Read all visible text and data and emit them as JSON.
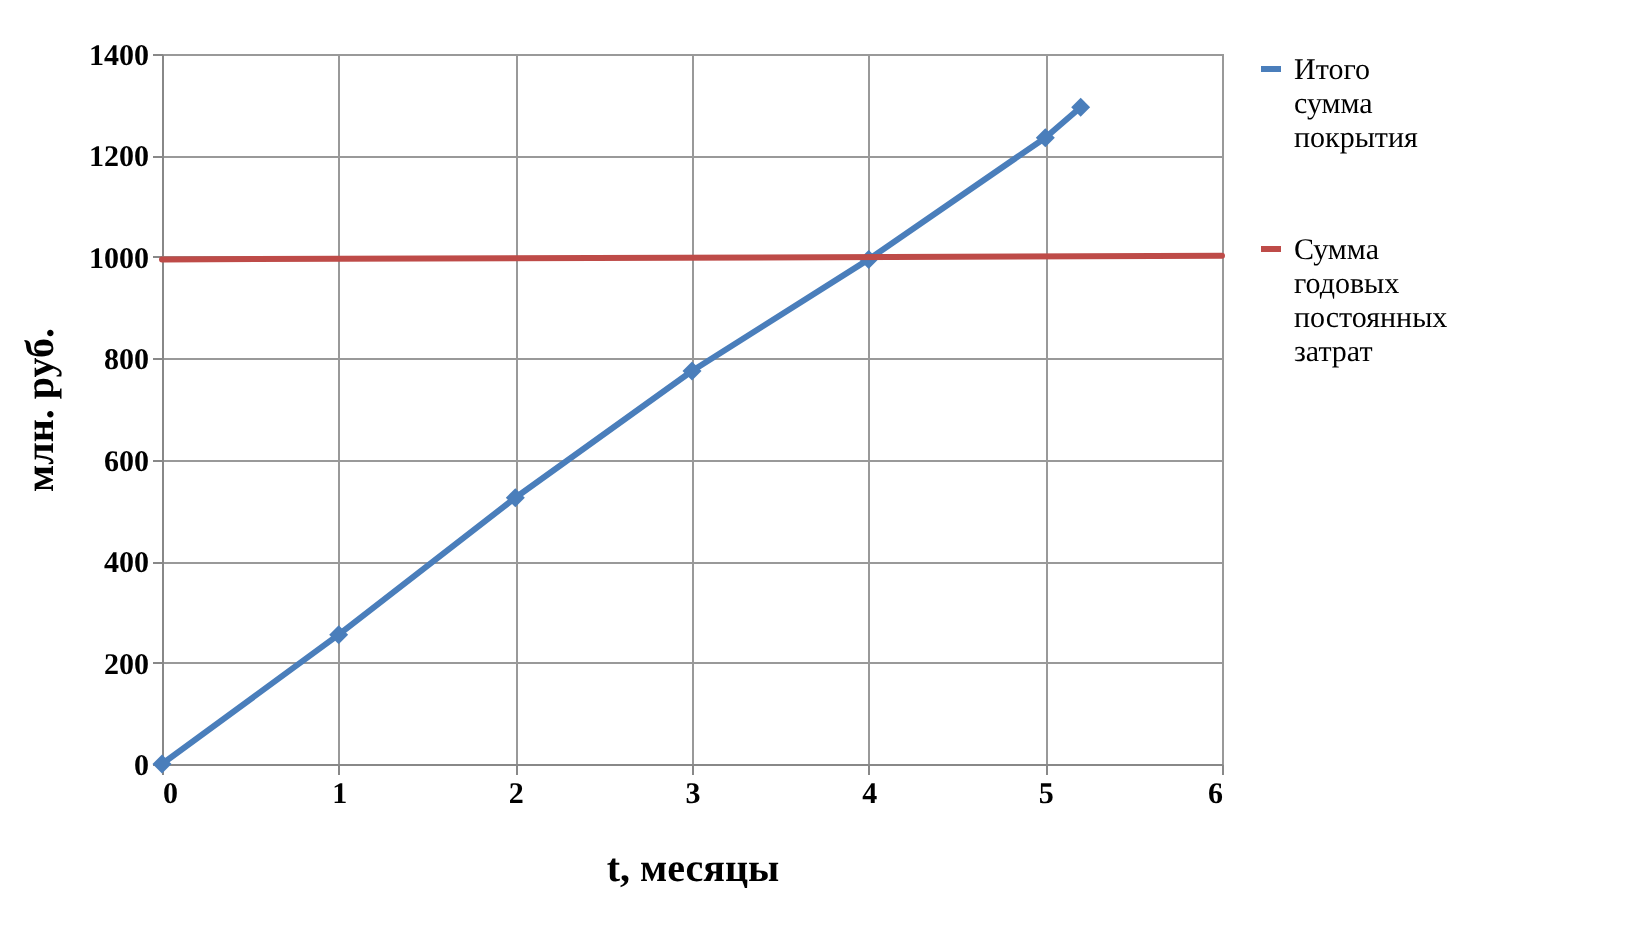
{
  "chart_data": {
    "type": "line",
    "xlabel": "t, месяцы",
    "ylabel": "млн. руб.",
    "xlim": [
      0,
      6
    ],
    "xticks": [
      0,
      1,
      2,
      3,
      4,
      5,
      6
    ],
    "ylim": [
      0,
      1400
    ],
    "yticks": [
      0,
      200,
      400,
      600,
      800,
      1000,
      1200,
      1400
    ],
    "grid": true,
    "legend": "right",
    "marker": "diamond",
    "line_style": "solid",
    "series": [
      {
        "name": "Итого сумма покрытия",
        "color": "#4a7ebb",
        "x": [
          0,
          1,
          2,
          3,
          4,
          5,
          5.2
        ],
        "values": [
          0,
          255,
          525,
          775,
          995,
          1235,
          1295
        ]
      },
      {
        "name": "Сумма годовых постоянных затрат",
        "color": "#be4b48",
        "marker": "none",
        "x": [
          0,
          6
        ],
        "values": [
          995,
          1002
        ]
      }
    ]
  }
}
